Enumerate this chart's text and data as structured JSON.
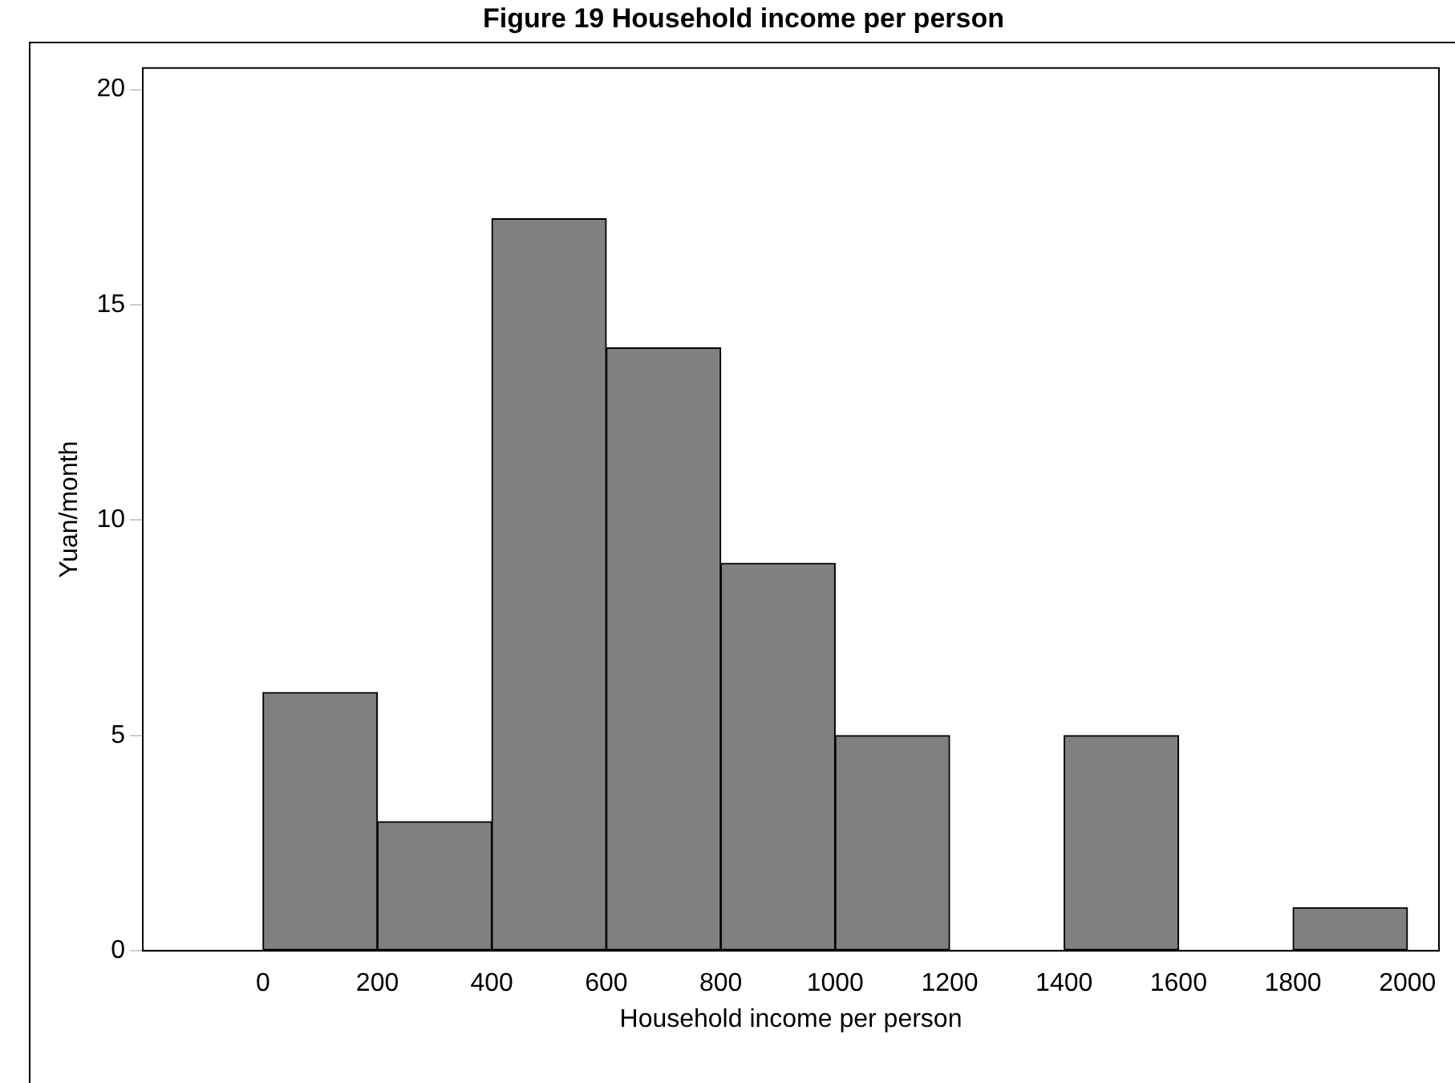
{
  "chart_data": {
    "type": "histogram",
    "title": "Figure 19 Household income per person",
    "xlabel": "Household income per person",
    "ylabel": "Yuan/month",
    "bins": [
      0,
      200,
      400,
      600,
      800,
      1000,
      1200,
      1400,
      1600,
      1800,
      2000
    ],
    "values": [
      6,
      3,
      17,
      14,
      9,
      5,
      0,
      5,
      0,
      1
    ],
    "color": "#808080",
    "xlim": [
      -210,
      2055
    ],
    "xticks": [
      0,
      200,
      400,
      600,
      800,
      1000,
      1200,
      1400,
      1600,
      1800,
      2000
    ],
    "ylim": [
      0,
      20.5
    ],
    "yticks": [
      0,
      5,
      10,
      15,
      20
    ],
    "grid": false,
    "legend": false
  }
}
